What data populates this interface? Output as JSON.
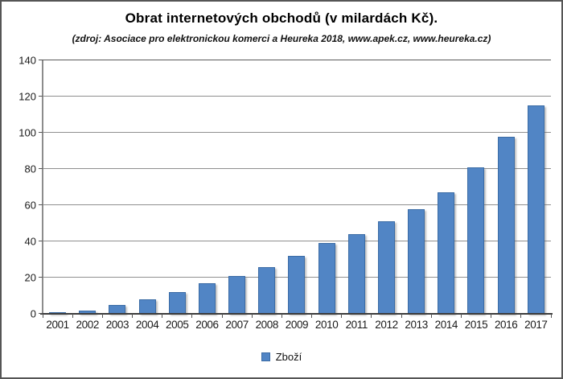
{
  "window": {
    "background": "#ffffff",
    "border_color": "#555555"
  },
  "chart_data": {
    "type": "bar",
    "title": "Obrat internetových obchodů (v milardách Kč).",
    "subtitle": "(zdroj: Asociace pro elektronickou komerci a Heureka 2018, www.apek.cz, www.heureka.cz)",
    "xlabel": "",
    "ylabel": "",
    "categories": [
      "2001",
      "2002",
      "2003",
      "2004",
      "2005",
      "2006",
      "2007",
      "2008",
      "2009",
      "2010",
      "2011",
      "2012",
      "2013",
      "2014",
      "2015",
      "2016",
      "2017"
    ],
    "series": [
      {
        "name": "Zboží",
        "values": [
          1,
          2,
          5,
          8,
          12,
          17,
          21,
          26,
          32,
          39,
          44,
          51,
          58,
          67,
          81,
          98,
          115
        ]
      }
    ],
    "ylim": [
      0,
      140
    ],
    "y_ticks": [
      0,
      20,
      40,
      60,
      80,
      100,
      120,
      140
    ],
    "grid": "horizontal-major",
    "gridline_color": "#8f8f8f",
    "legend_position": "bottom-center",
    "bar_color": "#5185c5",
    "bar_border_color": "#3a6ba5"
  }
}
